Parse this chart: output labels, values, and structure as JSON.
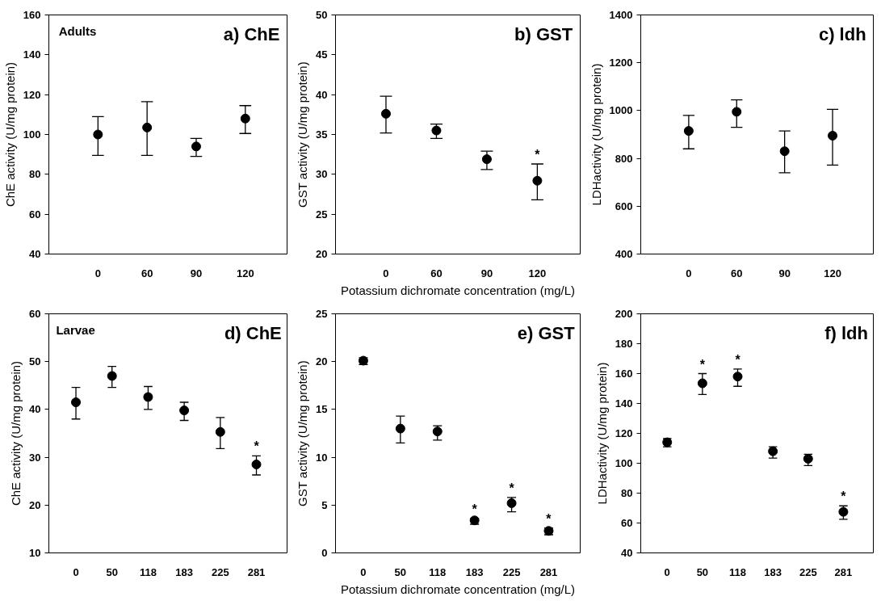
{
  "chart_data": [
    {
      "type": "scatter",
      "title": "a) ChE",
      "ylabel": "ChE activity (U/mg protein)",
      "categories": [
        "0",
        "60",
        "90",
        "120"
      ],
      "ylim": [
        40,
        160
      ],
      "yticks": [
        40,
        60,
        80,
        100,
        120,
        140,
        160
      ],
      "grid": false,
      "marker": "circle",
      "series": [
        {
          "color": "#000000",
          "values": [
            100,
            103.5,
            94,
            108
          ],
          "errors": [
            [
              89.5,
              109
            ],
            [
              89.5,
              116.5
            ],
            [
              89,
              98
            ],
            [
              100.5,
              114.5
            ]
          ]
        }
      ],
      "annotations": [
        "Adults"
      ]
    },
    {
      "type": "scatter",
      "title": "b) GST",
      "ylabel": "GST activity (U/mg protein)",
      "xlabel": "Potassium dichromate concentration (mg/L)",
      "categories": [
        "0",
        "60",
        "90",
        "120"
      ],
      "ylim": [
        20,
        50
      ],
      "yticks": [
        20,
        25,
        30,
        35,
        40,
        45,
        50
      ],
      "grid": false,
      "marker": "circle",
      "series": [
        {
          "color": "#000000",
          "values": [
            37.6,
            35.5,
            31.9,
            29.2
          ],
          "errors": [
            [
              35.2,
              39.8
            ],
            [
              34.5,
              36.3
            ],
            [
              30.6,
              32.9
            ],
            [
              26.8,
              31.3
            ]
          ]
        }
      ],
      "annotations": [
        {
          "text": "*",
          "x": "120",
          "y": 31.3
        }
      ]
    },
    {
      "type": "scatter",
      "title": "c) ldh",
      "ylabel": "LDHactivity (U/mg protein)",
      "categories": [
        "0",
        "60",
        "90",
        "120"
      ],
      "ylim": [
        400,
        1400
      ],
      "yticks": [
        400,
        600,
        800,
        1000,
        1200,
        1400
      ],
      "grid": false,
      "marker": "circle",
      "series": [
        {
          "color": "#000000",
          "values": [
            915,
            995,
            830,
            895
          ],
          "errors": [
            [
              840,
              980
            ],
            [
              930,
              1045
            ],
            [
              740,
              915
            ],
            [
              772,
              1005
            ]
          ]
        }
      ]
    },
    {
      "type": "scatter",
      "title": "d) ChE",
      "ylabel": "ChE activity (U/mg protein)",
      "categories": [
        "0",
        "50",
        "118",
        "183",
        "225",
        "281"
      ],
      "ylim": [
        10,
        60
      ],
      "yticks": [
        10,
        20,
        30,
        40,
        50,
        60
      ],
      "grid": false,
      "marker": "circle",
      "series": [
        {
          "color": "#000000",
          "values": [
            41.5,
            47,
            42.6,
            39.8,
            35.3,
            28.5
          ],
          "errors": [
            [
              38,
              44.6
            ],
            [
              44.6,
              49
            ],
            [
              40,
              44.8
            ],
            [
              37.7,
              41.5
            ],
            [
              31.8,
              38.3
            ],
            [
              26.3,
              30.3
            ]
          ]
        }
      ],
      "annotations": [
        "Larvae",
        {
          "text": "*",
          "x": "281",
          "y": 30.3
        }
      ]
    },
    {
      "type": "scatter",
      "title": "e) GST",
      "ylabel": "GST activity (U/mg protein)",
      "xlabel": "Potassium dichromate concentration (mg/L)",
      "categories": [
        "0",
        "50",
        "118",
        "183",
        "225",
        "281"
      ],
      "ylim": [
        0,
        25
      ],
      "yticks": [
        0,
        5,
        10,
        15,
        20,
        25
      ],
      "grid": false,
      "marker": "circle",
      "series": [
        {
          "color": "#000000",
          "values": [
            20.1,
            13,
            12.7,
            3.4,
            5.2,
            2.3
          ],
          "errors": [
            [
              19.7,
              20.4
            ],
            [
              11.5,
              14.3
            ],
            [
              11.8,
              13.3
            ],
            [
              3.0,
              3.6
            ],
            [
              4.3,
              5.8
            ],
            [
              1.9,
              2.6
            ]
          ]
        }
      ],
      "annotations": [
        {
          "text": "*",
          "x": "183",
          "y": 3.6
        },
        {
          "text": "*",
          "x": "225",
          "y": 5.8
        },
        {
          "text": "*",
          "x": "281",
          "y": 2.6
        }
      ]
    },
    {
      "type": "scatter",
      "title": "f) ldh",
      "ylabel": "LDHactivity (U/mg protein)",
      "categories": [
        "0",
        "50",
        "118",
        "183",
        "225",
        "281"
      ],
      "ylim": [
        40,
        200
      ],
      "yticks": [
        40,
        60,
        80,
        100,
        120,
        140,
        160,
        180,
        200
      ],
      "grid": false,
      "marker": "circle",
      "series": [
        {
          "color": "#000000",
          "values": [
            114,
            153.5,
            158,
            108,
            103,
            67.5
          ],
          "errors": [
            [
              111,
              116.5
            ],
            [
              146,
              160
            ],
            [
              151.5,
              163
            ],
            [
              103.5,
              111
            ],
            [
              98.5,
              106
            ],
            [
              62.5,
              71.5
            ]
          ]
        }
      ],
      "annotations": [
        {
          "text": "*",
          "x": "50",
          "y": 160
        },
        {
          "text": "*",
          "x": "118",
          "y": 163
        },
        {
          "text": "*",
          "x": "281",
          "y": 71.5
        }
      ]
    }
  ]
}
